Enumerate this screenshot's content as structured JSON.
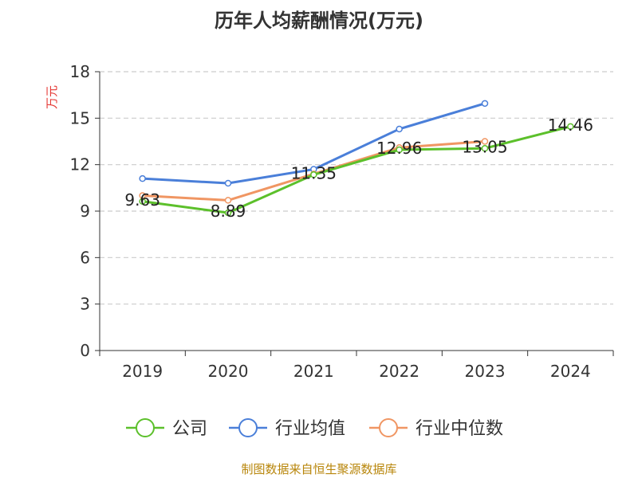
{
  "chart_data": {
    "type": "line",
    "title": "历年人均薪酬情况(万元)",
    "ylabel": "万元",
    "xlabel": "",
    "categories": [
      "2019",
      "2020",
      "2021",
      "2022",
      "2023",
      "2024"
    ],
    "ylim": [
      0,
      18
    ],
    "yticks": [
      0,
      3,
      6,
      9,
      12,
      15,
      18
    ],
    "grid": true,
    "legend_position": "bottom",
    "series": [
      {
        "name": "公司",
        "color": "#5cc02b",
        "values": [
          9.63,
          8.89,
          11.35,
          12.96,
          13.05,
          14.46
        ],
        "labels": [
          "9.63",
          "8.89",
          "11.35",
          "12.96",
          "13.05",
          "14.46"
        ]
      },
      {
        "name": "行业均值",
        "color": "#4a7fd9",
        "values": [
          11.1,
          10.8,
          11.7,
          14.3,
          15.95,
          null
        ]
      },
      {
        "name": "行业中位数",
        "color": "#f09663",
        "values": [
          10.0,
          9.7,
          11.4,
          13.1,
          13.5,
          null
        ]
      }
    ]
  },
  "source": "制图数据来自恒生聚源数据库"
}
